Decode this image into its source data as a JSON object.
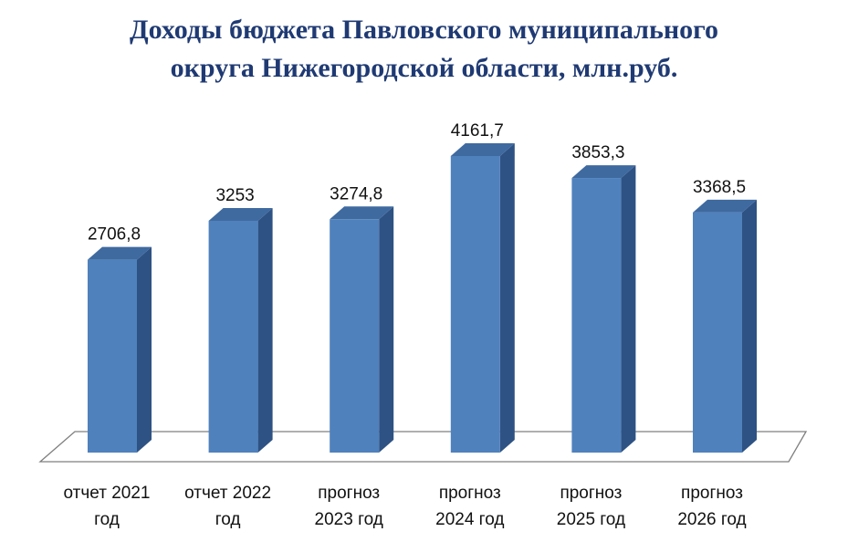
{
  "chart_data": {
    "type": "bar",
    "title_lines": [
      "Доходы бюджета Павловского муниципального",
      "округа Нижегородской области, млн.руб."
    ],
    "categories": [
      [
        "отчет 2021",
        "год"
      ],
      [
        "отчет 2022",
        "год"
      ],
      [
        "прогноз",
        "2023 год"
      ],
      [
        "прогноз",
        "2024 год"
      ],
      [
        "прогноз",
        "2025 год"
      ],
      [
        "прогноз",
        "2026 год"
      ]
    ],
    "values": [
      2706.8,
      3253,
      3274.8,
      4161.7,
      3853.3,
      3368.5
    ],
    "value_labels": [
      "2706,8",
      "3253",
      "3274,8",
      "4161,7",
      "3853,3",
      "3368,5"
    ],
    "ylim": [
      0,
      4200
    ],
    "style_3d": true,
    "grid": false,
    "legend": "none",
    "colors": {
      "bar_front": "#4f81bd",
      "bar_side": "#2e5283",
      "bar_top": "#3f6aa0",
      "title": "#1f3a73",
      "floor_stroke": "#7f7f7f"
    }
  }
}
